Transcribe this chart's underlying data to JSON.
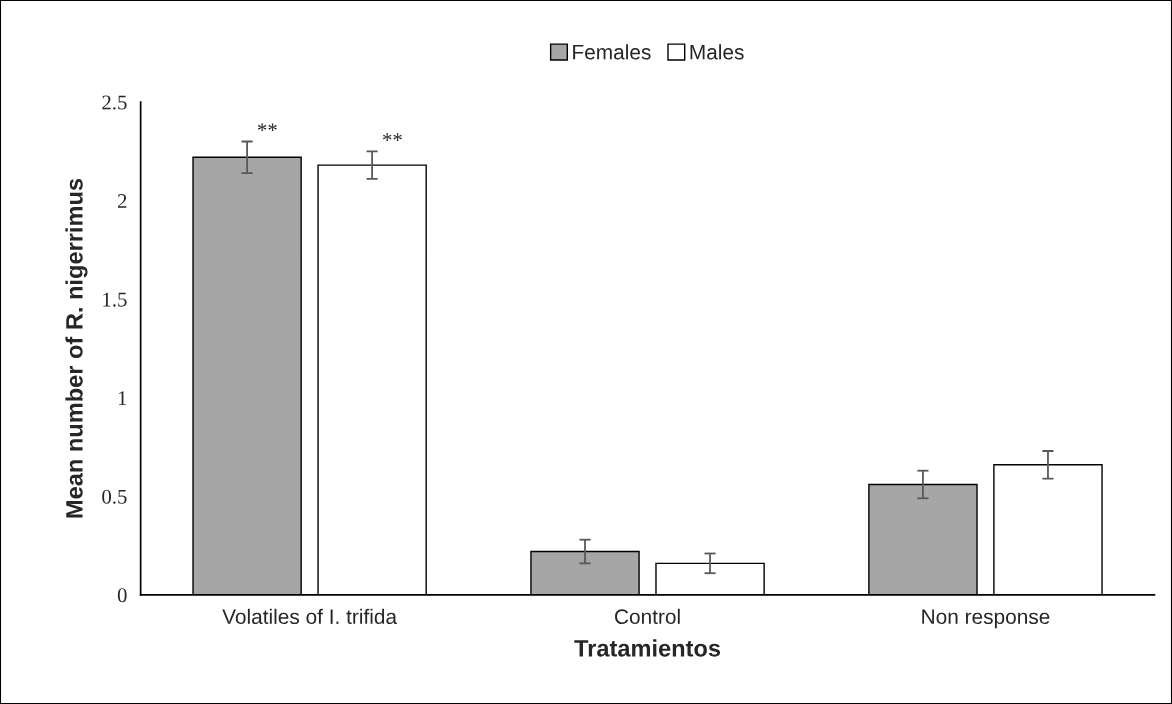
{
  "chart_data": {
    "type": "bar",
    "xlabel": "Tratamientos",
    "ylabel": "Mean number of R. nigerrimus",
    "categories": [
      "Volatiles of I. trifida",
      "Control",
      "Non response"
    ],
    "series": [
      {
        "name": "Females",
        "color": "#a6a6a6",
        "values": [
          2.22,
          0.22,
          0.56
        ],
        "errors": [
          0.08,
          0.06,
          0.07
        ],
        "value_labels": [
          "**",
          null,
          null
        ]
      },
      {
        "name": "Males",
        "color": "#ffffff",
        "values": [
          2.18,
          0.16,
          0.66
        ],
        "errors": [
          0.07,
          0.05,
          0.07
        ],
        "value_labels": [
          "**",
          null,
          null
        ]
      }
    ],
    "ylim": [
      0,
      2.5
    ],
    "yticks": [
      0,
      0.5,
      1,
      1.5,
      2,
      2.5
    ],
    "grid": false,
    "legend": "top"
  }
}
